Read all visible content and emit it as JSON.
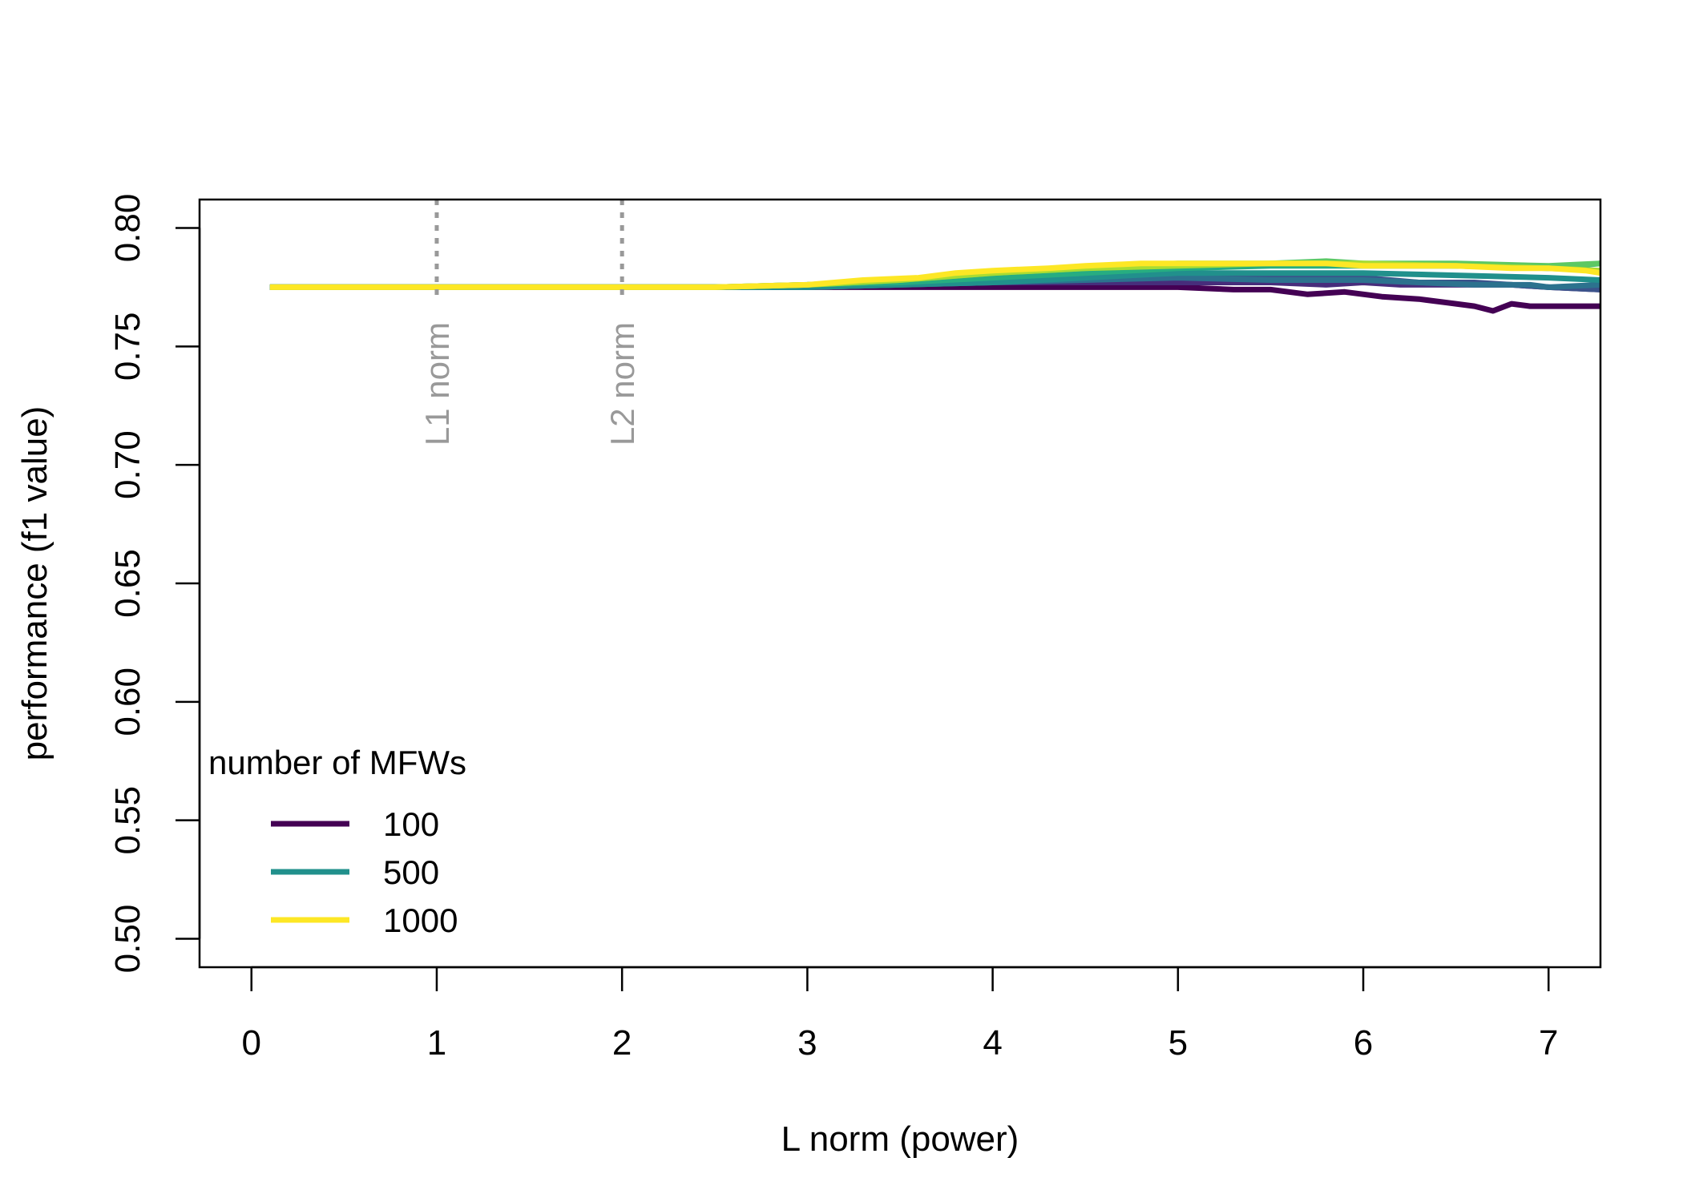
{
  "chart_data": {
    "type": "line",
    "title": "",
    "xlabel": "L norm (power)",
    "ylabel": "performance (f1 value)",
    "xlim": [
      -0.28,
      7.28
    ],
    "ylim": [
      0.488,
      0.812
    ],
    "xticks": [
      0,
      1,
      2,
      3,
      4,
      5,
      6,
      7
    ],
    "yticks": [
      0.5,
      0.55,
      0.6,
      0.65,
      0.7,
      0.75,
      0.8
    ],
    "xtick_labels": [
      "0",
      "1",
      "2",
      "3",
      "4",
      "5",
      "6",
      "7"
    ],
    "ytick_labels": [
      "0.50",
      "0.55",
      "0.60",
      "0.65",
      "0.70",
      "0.75",
      "0.80"
    ],
    "grid": false,
    "legend": {
      "title": "number of MFWs",
      "placement": "bottom-left",
      "entries": [
        {
          "label": "100",
          "color": "#440154"
        },
        {
          "label": "500",
          "color": "#21908C"
        },
        {
          "label": "1000",
          "color": "#FDE725"
        }
      ]
    },
    "annotations": [
      {
        "text": "L1 norm",
        "x": 1,
        "color": "#999999",
        "style": "dotted vertical line"
      },
      {
        "text": "L2 norm",
        "x": 2,
        "color": "#999999",
        "style": "dotted vertical line"
      }
    ],
    "series": [
      {
        "color": "#440154",
        "x": [
          0.1,
          2.5,
          3.0,
          3.5,
          4.0,
          4.5,
          5.0,
          5.3,
          5.5,
          5.7,
          5.9,
          6.1,
          6.3,
          6.5,
          6.6,
          6.7,
          6.8,
          6.9,
          7.0,
          7.1,
          7.28
        ],
        "y": [
          0.775,
          0.775,
          0.775,
          0.775,
          0.775,
          0.775,
          0.775,
          0.774,
          0.774,
          0.772,
          0.773,
          0.771,
          0.77,
          0.768,
          0.767,
          0.765,
          0.768,
          0.767,
          0.767,
          0.767,
          0.767
        ]
      },
      {
        "color": "#472D7B",
        "x": [
          0.1,
          2.5,
          3.0,
          3.5,
          4.0,
          4.5,
          5.0,
          5.5,
          5.8,
          6.0,
          6.2,
          6.5,
          6.8,
          7.0,
          7.28
        ],
        "y": [
          0.775,
          0.775,
          0.775,
          0.776,
          0.777,
          0.777,
          0.777,
          0.777,
          0.776,
          0.777,
          0.776,
          0.776,
          0.776,
          0.775,
          0.774
        ]
      },
      {
        "color": "#3B528B",
        "x": [
          0.1,
          2.5,
          3.0,
          3.5,
          3.8,
          4.0,
          4.5,
          5.0,
          5.5,
          5.8,
          6.0,
          6.3,
          6.6,
          6.8,
          7.0,
          7.28
        ],
        "y": [
          0.775,
          0.775,
          0.775,
          0.776,
          0.778,
          0.779,
          0.78,
          0.781,
          0.78,
          0.779,
          0.779,
          0.777,
          0.777,
          0.776,
          0.775,
          0.774
        ]
      },
      {
        "color": "#2C728E",
        "x": [
          0.1,
          2.5,
          3.0,
          3.5,
          4.0,
          4.5,
          5.0,
          5.5,
          6.0,
          6.3,
          6.6,
          6.9,
          7.0,
          7.28
        ],
        "y": [
          0.775,
          0.775,
          0.775,
          0.776,
          0.777,
          0.778,
          0.779,
          0.778,
          0.778,
          0.777,
          0.776,
          0.776,
          0.775,
          0.776
        ]
      },
      {
        "color": "#21908C",
        "x": [
          0.1,
          2.5,
          3.0,
          3.5,
          4.0,
          4.5,
          5.0,
          5.5,
          6.0,
          6.5,
          7.0,
          7.28
        ],
        "y": [
          0.775,
          0.775,
          0.775,
          0.776,
          0.777,
          0.779,
          0.781,
          0.781,
          0.781,
          0.78,
          0.779,
          0.778
        ]
      },
      {
        "color": "#27AD81",
        "x": [
          0.1,
          2.5,
          3.0,
          3.5,
          4.0,
          4.5,
          5.0,
          5.5,
          6.0,
          6.5,
          7.0,
          7.28
        ],
        "y": [
          0.775,
          0.775,
          0.776,
          0.777,
          0.779,
          0.781,
          0.783,
          0.784,
          0.784,
          0.784,
          0.783,
          0.785
        ]
      },
      {
        "color": "#5DC863",
        "x": [
          0.1,
          2.5,
          3.0,
          3.5,
          4.0,
          4.5,
          5.0,
          5.5,
          5.8,
          6.0,
          6.5,
          7.0,
          7.28
        ],
        "y": [
          0.775,
          0.775,
          0.776,
          0.778,
          0.781,
          0.783,
          0.785,
          0.785,
          0.786,
          0.785,
          0.785,
          0.784,
          0.785
        ]
      },
      {
        "color": "#AADC32",
        "x": [
          0.1,
          2.5,
          3.0,
          3.5,
          4.0,
          4.5,
          5.0,
          5.5,
          6.0,
          6.5,
          7.0,
          7.28
        ],
        "y": [
          0.775,
          0.775,
          0.776,
          0.778,
          0.781,
          0.783,
          0.784,
          0.785,
          0.785,
          0.784,
          0.783,
          0.782
        ]
      },
      {
        "color": "#FDE725",
        "x": [
          0.1,
          2.5,
          3.0,
          3.3,
          3.6,
          3.8,
          4.0,
          4.3,
          4.5,
          4.8,
          5.0,
          5.3,
          5.5,
          5.8,
          6.0,
          6.3,
          6.5,
          6.8,
          7.0,
          7.2,
          7.28
        ],
        "y": [
          0.775,
          0.775,
          0.776,
          0.778,
          0.779,
          0.781,
          0.782,
          0.783,
          0.784,
          0.785,
          0.785,
          0.785,
          0.785,
          0.785,
          0.784,
          0.784,
          0.784,
          0.783,
          0.783,
          0.782,
          0.781
        ]
      }
    ]
  }
}
